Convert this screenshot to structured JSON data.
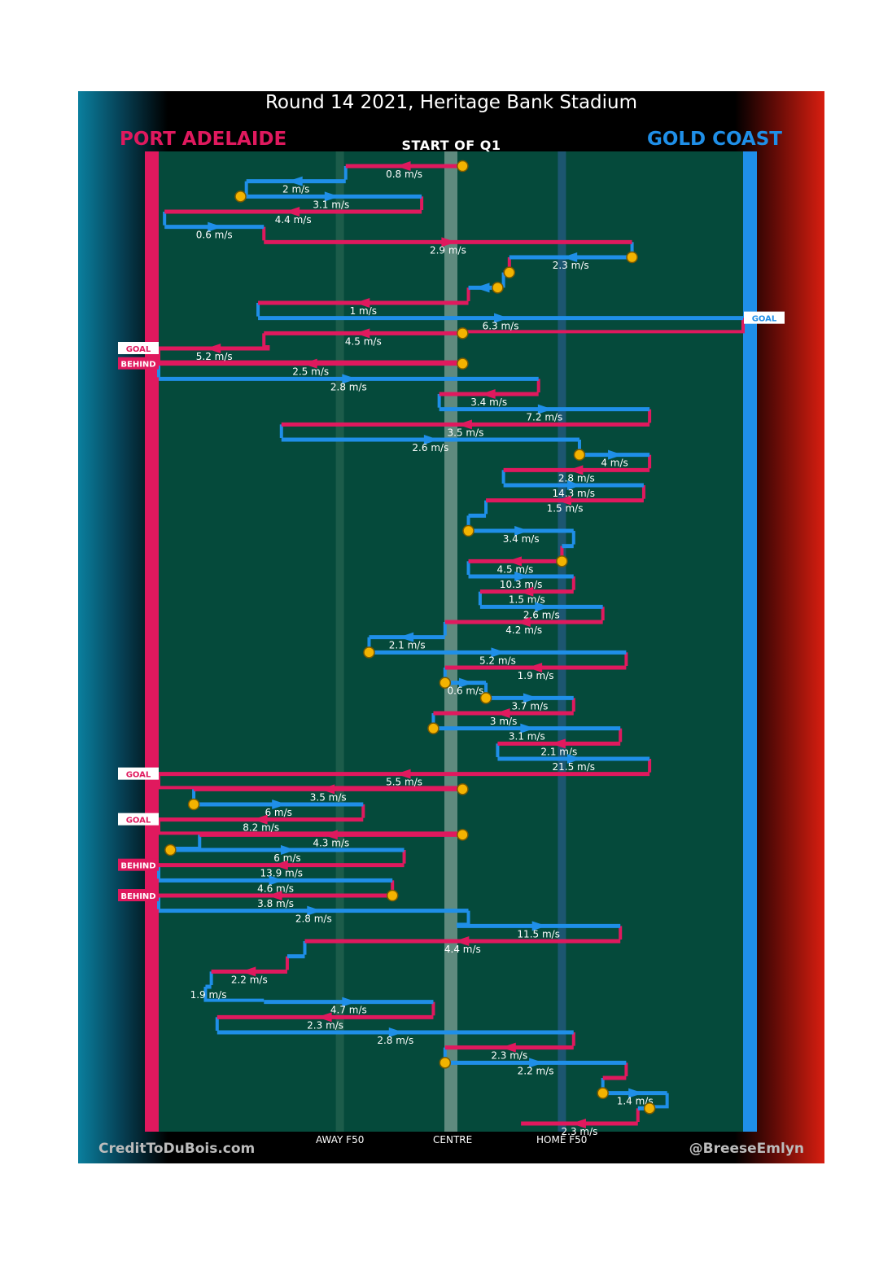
{
  "title": "Round 14 2021, Heritage Bank Stadium",
  "subtitle": "START OF Q1",
  "teams": {
    "home_left": {
      "name": "PORT ADELAIDE",
      "color": "#e0195e"
    },
    "away_right": {
      "name": "GOLD COAST",
      "color": "#1f8fe8"
    }
  },
  "zones": {
    "away": "AWAY F50",
    "centre": "CENTRE",
    "home": "HOME F50"
  },
  "footer": {
    "left": "CreditToDuBois.com",
    "right": "@BreeseEmlyn"
  },
  "colors": {
    "pitch": "#054a3b",
    "port": "#e0195e",
    "gc": "#1f8fe8",
    "marker": "#f3b300"
  },
  "chart_data": {
    "type": "line",
    "x_axis": {
      "ticks": [
        "AWAY F50",
        "CENTRE",
        "HOME F50"
      ]
    },
    "chains": [
      {
        "team": "PA",
        "speed": "0.8 m/s",
        "from": 0.52,
        "to": 0.32,
        "marker": true
      },
      {
        "team": "GC",
        "speed": "2 m/s",
        "from": 0.32,
        "to": 0.15
      },
      {
        "team": "GC",
        "speed": "3.1 m/s",
        "from": 0.14,
        "to": 0.45,
        "marker": true
      },
      {
        "team": "PA",
        "speed": "4.4 m/s",
        "from": 0.45,
        "to": 0.01
      },
      {
        "team": "GC",
        "speed": "0.6 m/s",
        "from": 0.01,
        "to": 0.18
      },
      {
        "team": "PA",
        "speed": "2.9 m/s",
        "from": 0.18,
        "to": 0.81
      },
      {
        "team": "GC",
        "speed": "2.3 m/s",
        "from": 0.81,
        "to": 0.6,
        "marker": true
      },
      {
        "team": "PA",
        "speed": "",
        "from": 0.6,
        "to": 0.59,
        "marker": true
      },
      {
        "team": "GC",
        "speed": "",
        "from": 0.58,
        "to": 0.53,
        "marker": true
      },
      {
        "team": "PA",
        "speed": "1 m/s",
        "from": 0.53,
        "to": 0.17
      },
      {
        "team": "GC",
        "speed": "6.3 m/s",
        "from": 0.17,
        "to": 1.0,
        "result": "GOAL"
      },
      {
        "team": "PA",
        "speed": "4.5 m/s",
        "from": 0.52,
        "to": 0.18,
        "marker": true
      },
      {
        "team": "PA",
        "speed": "5.2 m/s",
        "from": 0.19,
        "to": 0.0,
        "result": "GOAL"
      },
      {
        "team": "PA",
        "speed": "2.5 m/s",
        "from": 0.52,
        "to": 0.0,
        "marker": true,
        "result": "BEHIND"
      },
      {
        "team": "GC",
        "speed": "2.8 m/s",
        "from": 0.0,
        "to": 0.65
      },
      {
        "team": "PA",
        "speed": "3.4 m/s",
        "from": 0.65,
        "to": 0.48
      },
      {
        "team": "GC",
        "speed": "7.2 m/s",
        "from": 0.48,
        "to": 0.84
      },
      {
        "team": "PA",
        "speed": "3.5 m/s",
        "from": 0.84,
        "to": 0.21
      },
      {
        "team": "GC",
        "speed": "2.6 m/s",
        "from": 0.21,
        "to": 0.72
      },
      {
        "team": "GC",
        "speed": "4 m/s",
        "from": 0.72,
        "to": 0.84,
        "marker": true
      },
      {
        "team": "PA",
        "speed": "2.8 m/s",
        "from": 0.84,
        "to": 0.59
      },
      {
        "team": "GC",
        "speed": "14.3 m/s",
        "from": 0.59,
        "to": 0.83
      },
      {
        "team": "PA",
        "speed": "1.5 m/s",
        "from": 0.83,
        "to": 0.56
      },
      {
        "team": "GC",
        "speed": "",
        "from": 0.56,
        "to": 0.53
      },
      {
        "team": "GC",
        "speed": "3.4 m/s",
        "from": 0.53,
        "to": 0.71,
        "marker": true
      },
      {
        "team": "GC",
        "speed": "",
        "from": 0.71,
        "to": 0.69
      },
      {
        "team": "PA",
        "speed": "4.5 m/s",
        "from": 0.69,
        "to": 0.53,
        "marker": true
      },
      {
        "team": "GC",
        "speed": "10.3 m/s",
        "from": 0.53,
        "to": 0.71
      },
      {
        "team": "PA",
        "speed": "1.5 m/s",
        "from": 0.71,
        "to": 0.55
      },
      {
        "team": "GC",
        "speed": "2.6 m/s",
        "from": 0.55,
        "to": 0.76
      },
      {
        "team": "PA",
        "speed": "4.2 m/s",
        "from": 0.76,
        "to": 0.49
      },
      {
        "team": "GC",
        "speed": "2.1 m/s",
        "from": 0.49,
        "to": 0.36
      },
      {
        "team": "GC",
        "speed": "5.2 m/s",
        "from": 0.36,
        "to": 0.8,
        "marker": true
      },
      {
        "team": "PA",
        "speed": "1.9 m/s",
        "from": 0.8,
        "to": 0.49
      },
      {
        "team": "GC",
        "speed": "0.6 m/s",
        "from": 0.49,
        "to": 0.56,
        "marker": true
      },
      {
        "team": "GC",
        "speed": "3.7 m/s",
        "from": 0.56,
        "to": 0.71,
        "marker": true
      },
      {
        "team": "PA",
        "speed": "3 m/s",
        "from": 0.71,
        "to": 0.47
      },
      {
        "team": "GC",
        "speed": "3.1 m/s",
        "from": 0.47,
        "to": 0.79,
        "marker": true
      },
      {
        "team": "PA",
        "speed": "2.1 m/s",
        "from": 0.79,
        "to": 0.58
      },
      {
        "team": "GC",
        "speed": "21.5 m/s",
        "from": 0.58,
        "to": 0.84
      },
      {
        "team": "PA",
        "speed": "5.5 m/s",
        "from": 0.84,
        "to": 0.0,
        "result": "GOAL"
      },
      {
        "team": "PA",
        "speed": "3.5 m/s",
        "from": 0.52,
        "to": 0.06,
        "marker": true
      },
      {
        "team": "GC",
        "speed": "6 m/s",
        "from": 0.06,
        "to": 0.35,
        "marker": true
      },
      {
        "team": "PA",
        "speed": "8.2 m/s",
        "from": 0.35,
        "to": 0.0,
        "result": "GOAL"
      },
      {
        "team": "PA",
        "speed": "4.3 m/s",
        "from": 0.52,
        "to": 0.07,
        "marker": true
      },
      {
        "team": "GC",
        "speed": "6 m/s",
        "from": 0.02,
        "to": 0.42,
        "marker": true
      },
      {
        "team": "PA",
        "speed": "13.9 m/s",
        "from": 0.42,
        "to": 0.0,
        "result": "BEHIND"
      },
      {
        "team": "GC",
        "speed": "4.6 m/s",
        "from": 0.0,
        "to": 0.4
      },
      {
        "team": "PA",
        "speed": "3.8 m/s",
        "from": 0.4,
        "to": 0.0,
        "marker": true,
        "result": "BEHIND"
      },
      {
        "team": "GC",
        "speed": "2.8 m/s",
        "from": 0.0,
        "to": 0.53
      },
      {
        "team": "GC",
        "speed": "11.5 m/s",
        "from": 0.51,
        "to": 0.79
      },
      {
        "team": "PA",
        "speed": "4.4 m/s",
        "from": 0.79,
        "to": 0.25
      },
      {
        "team": "GC",
        "speed": "",
        "from": 0.25,
        "to": 0.22
      },
      {
        "team": "PA",
        "speed": "2.2 m/s",
        "from": 0.22,
        "to": 0.09
      },
      {
        "team": "GC",
        "speed": "1.9 m/s",
        "from": 0.09,
        "to": 0.08
      },
      {
        "team": "GC",
        "speed": "4.7 m/s",
        "from": 0.18,
        "to": 0.47
      },
      {
        "team": "PA",
        "speed": "2.3 m/s",
        "from": 0.47,
        "to": 0.1
      },
      {
        "team": "GC",
        "speed": "2.8 m/s",
        "from": 0.1,
        "to": 0.71
      },
      {
        "team": "PA",
        "speed": "2.3 m/s",
        "from": 0.71,
        "to": 0.49
      },
      {
        "team": "GC",
        "speed": "2.2 m/s",
        "from": 0.49,
        "to": 0.8,
        "marker": true
      },
      {
        "team": "PA",
        "speed": "",
        "from": 0.8,
        "to": 0.76
      },
      {
        "team": "GC",
        "speed": "1.4 m/s",
        "from": 0.76,
        "to": 0.87,
        "marker": true
      },
      {
        "team": "GC",
        "speed": "",
        "from": 0.84,
        "to": 0.82,
        "marker": true
      },
      {
        "team": "PA",
        "speed": "2.3 m/s",
        "from": 0.82,
        "to": 0.62
      }
    ]
  }
}
